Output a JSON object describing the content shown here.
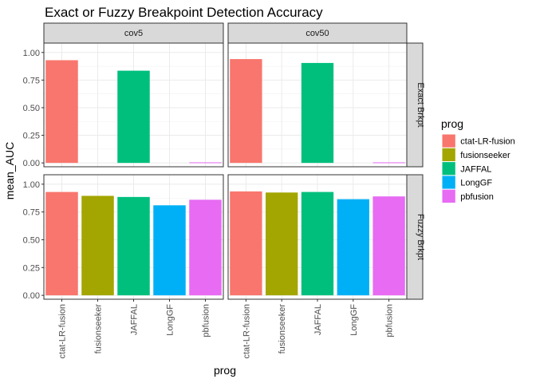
{
  "chart_data": {
    "type": "bar",
    "title": "Exact or Fuzzy Breakpoint Detection Accuracy",
    "xlabel": "prog",
    "ylabel": "mean_AUC",
    "ylim": [
      -0.035,
      1.085
    ],
    "yticks": [
      "0.00",
      "0.25",
      "0.50",
      "0.75",
      "1.00"
    ],
    "categories": [
      "ctat-LR-fusion",
      "fusionseeker",
      "JAFFAL",
      "LongGF",
      "pbfusion"
    ],
    "facet_cols": [
      "cov5",
      "cov50"
    ],
    "facet_rows": [
      "Exact Brkpt",
      "Fuzzy Brkpt"
    ],
    "colors": {
      "ctat-LR-fusion": "#F8766D",
      "fusionseeker": "#A3A500",
      "JAFFAL": "#00BF7D",
      "LongGF": "#00B0F6",
      "pbfusion": "#E76BF3"
    },
    "panels": [
      {
        "row": "Exact Brkpt",
        "col": "cov5",
        "values": [
          0.93,
          null,
          0.835,
          null,
          0.005
        ]
      },
      {
        "row": "Exact Brkpt",
        "col": "cov50",
        "values": [
          0.94,
          null,
          0.905,
          null,
          0.005
        ]
      },
      {
        "row": "Fuzzy Brkpt",
        "col": "cov5",
        "values": [
          0.93,
          0.895,
          0.885,
          0.81,
          0.86
        ]
      },
      {
        "row": "Fuzzy Brkpt",
        "col": "cov50",
        "values": [
          0.935,
          0.925,
          0.93,
          0.865,
          0.89
        ]
      }
    ],
    "legend": {
      "title": "prog",
      "position": "right",
      "entries": [
        "ctat-LR-fusion",
        "fusionseeker",
        "JAFFAL",
        "LongGF",
        "pbfusion"
      ]
    },
    "grid": true
  }
}
